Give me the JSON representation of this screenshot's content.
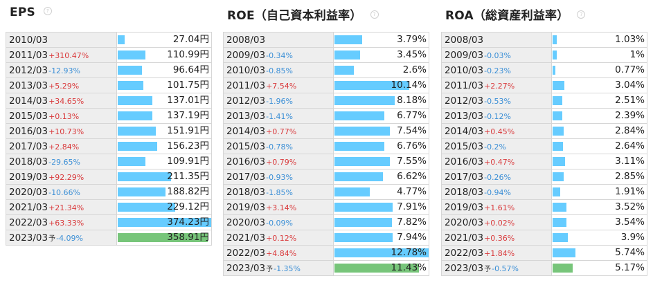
{
  "colors": {
    "bar": "#66ccff",
    "forecast_bar": "#77c57a",
    "positive": "#d9393b",
    "negative": "#3b8fd6"
  },
  "panels": [
    {
      "id": "eps",
      "title": "EPS",
      "help_icon": "?",
      "max": 374.23,
      "rows": [
        {
          "year": "2010/03",
          "change": "",
          "value": "27.04円",
          "num": 27.04
        },
        {
          "year": "2011/03",
          "change": "+310.47%",
          "value": "110.99円",
          "num": 110.99
        },
        {
          "year": "2012/03",
          "change": "-12.93%",
          "value": "96.64円",
          "num": 96.64
        },
        {
          "year": "2013/03",
          "change": "+5.29%",
          "value": "101.75円",
          "num": 101.75
        },
        {
          "year": "2014/03",
          "change": "+34.65%",
          "value": "137.01円",
          "num": 137.01
        },
        {
          "year": "2015/03",
          "change": "+0.13%",
          "value": "137.19円",
          "num": 137.19
        },
        {
          "year": "2016/03",
          "change": "+10.73%",
          "value": "151.91円",
          "num": 151.91
        },
        {
          "year": "2017/03",
          "change": "+2.84%",
          "value": "156.23円",
          "num": 156.23
        },
        {
          "year": "2018/03",
          "change": "-29.65%",
          "value": "109.91円",
          "num": 109.91
        },
        {
          "year": "2019/03",
          "change": "+92.29%",
          "value": "211.35円",
          "num": 211.35
        },
        {
          "year": "2020/03",
          "change": "-10.66%",
          "value": "188.82円",
          "num": 188.82
        },
        {
          "year": "2021/03",
          "change": "+21.34%",
          "value": "229.12円",
          "num": 229.12
        },
        {
          "year": "2022/03",
          "change": "+63.33%",
          "value": "374.23円",
          "num": 374.23
        },
        {
          "year": "2023/03",
          "forecast": "予",
          "change": "-4.09%",
          "value": "358.91円",
          "num": 358.91
        }
      ]
    },
    {
      "id": "roe",
      "title": "ROE（自己資本利益率）",
      "help_icon": "?",
      "max": 12.78,
      "rows": [
        {
          "year": "2008/03",
          "change": "",
          "value": "3.79%",
          "num": 3.79
        },
        {
          "year": "2009/03",
          "change": "-0.34%",
          "value": "3.45%",
          "num": 3.45
        },
        {
          "year": "2010/03",
          "change": "-0.85%",
          "value": "2.6%",
          "num": 2.6
        },
        {
          "year": "2011/03",
          "change": "+7.54%",
          "value": "10.14%",
          "num": 10.14
        },
        {
          "year": "2012/03",
          "change": "-1.96%",
          "value": "8.18%",
          "num": 8.18
        },
        {
          "year": "2013/03",
          "change": "-1.41%",
          "value": "6.77%",
          "num": 6.77
        },
        {
          "year": "2014/03",
          "change": "+0.77%",
          "value": "7.54%",
          "num": 7.54
        },
        {
          "year": "2015/03",
          "change": "-0.78%",
          "value": "6.76%",
          "num": 6.76
        },
        {
          "year": "2016/03",
          "change": "+0.79%",
          "value": "7.55%",
          "num": 7.55
        },
        {
          "year": "2017/03",
          "change": "-0.93%",
          "value": "6.62%",
          "num": 6.62
        },
        {
          "year": "2018/03",
          "change": "-1.85%",
          "value": "4.77%",
          "num": 4.77
        },
        {
          "year": "2019/03",
          "change": "+3.14%",
          "value": "7.91%",
          "num": 7.91
        },
        {
          "year": "2020/03",
          "change": "-0.09%",
          "value": "7.82%",
          "num": 7.82
        },
        {
          "year": "2021/03",
          "change": "+0.12%",
          "value": "7.94%",
          "num": 7.94
        },
        {
          "year": "2022/03",
          "change": "+4.84%",
          "value": "12.78%",
          "num": 12.78
        },
        {
          "year": "2023/03",
          "forecast": "予",
          "change": "-1.35%",
          "value": "11.43%",
          "num": 11.43
        }
      ]
    },
    {
      "id": "roa",
      "title": "ROA（総資産利益率）",
      "help_icon": "?",
      "max": 24,
      "rows": [
        {
          "year": "2008/03",
          "change": "",
          "value": "1.03%",
          "num": 1.03
        },
        {
          "year": "2009/03",
          "change": "-0.03%",
          "value": "1%",
          "num": 1
        },
        {
          "year": "2010/03",
          "change": "-0.23%",
          "value": "0.77%",
          "num": 0.77
        },
        {
          "year": "2011/03",
          "change": "+2.27%",
          "value": "3.04%",
          "num": 3.04
        },
        {
          "year": "2012/03",
          "change": "-0.53%",
          "value": "2.51%",
          "num": 2.51
        },
        {
          "year": "2013/03",
          "change": "-0.12%",
          "value": "2.39%",
          "num": 2.39
        },
        {
          "year": "2014/03",
          "change": "+0.45%",
          "value": "2.84%",
          "num": 2.84
        },
        {
          "year": "2015/03",
          "change": "-0.2%",
          "value": "2.64%",
          "num": 2.64
        },
        {
          "year": "2016/03",
          "change": "+0.47%",
          "value": "3.11%",
          "num": 3.11
        },
        {
          "year": "2017/03",
          "change": "-0.26%",
          "value": "2.85%",
          "num": 2.85
        },
        {
          "year": "2018/03",
          "change": "-0.94%",
          "value": "1.91%",
          "num": 1.91
        },
        {
          "year": "2019/03",
          "change": "+1.61%",
          "value": "3.52%",
          "num": 3.52
        },
        {
          "year": "2020/03",
          "change": "+0.02%",
          "value": "3.54%",
          "num": 3.54
        },
        {
          "year": "2021/03",
          "change": "+0.36%",
          "value": "3.9%",
          "num": 3.9
        },
        {
          "year": "2022/03",
          "change": "+1.84%",
          "value": "5.74%",
          "num": 5.74
        },
        {
          "year": "2023/03",
          "forecast": "予",
          "change": "-0.57%",
          "value": "5.17%",
          "num": 5.17
        }
      ]
    }
  ]
}
